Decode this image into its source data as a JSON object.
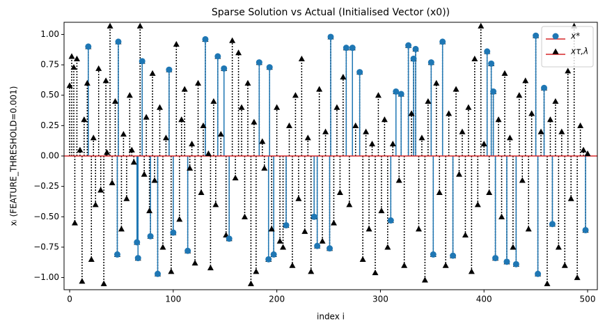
{
  "chart_data": {
    "type": "stem",
    "title": "Sparse Solution vs Actual (Initialised Vector (x0))",
    "x_label": "index i",
    "y_label": "xᵢ (FEATURE_THRESHOLD=0.001)",
    "xlim": [
      -5.4,
      509.4
    ],
    "ylim": [
      -1.1,
      1.1
    ],
    "xticks": [
      0,
      100,
      200,
      300,
      400,
      500
    ],
    "yticks": [
      {
        "value": -1,
        "label": "−1.00"
      },
      {
        "value": -0.75,
        "label": "−0.75"
      },
      {
        "value": -0.5,
        "label": "−0.50"
      },
      {
        "value": -0.25,
        "label": "−0.25"
      },
      {
        "value": 0,
        "label": "0.00"
      },
      {
        "value": 0.25,
        "label": "0.25"
      },
      {
        "value": 0.5,
        "label": "0.50"
      },
      {
        "value": 0.75,
        "label": "0.75"
      },
      {
        "value": 1,
        "label": "1.00"
      }
    ],
    "grid": false,
    "baseline_color": "#d62728",
    "legend": "upper right",
    "series": [
      {
        "name": "x*",
        "color": "#1f77b4",
        "marker": "circle",
        "stem_style": "solid",
        "x": [
          18,
          46,
          47,
          65,
          66,
          70,
          78,
          85,
          96,
          100,
          114,
          131,
          143,
          149,
          154,
          183,
          192,
          193,
          197,
          209,
          236,
          239,
          251,
          252,
          267,
          273,
          280,
          310,
          315,
          320,
          327,
          332,
          334,
          349,
          351,
          360,
          370,
          403,
          407,
          409,
          411,
          422,
          431,
          450,
          452,
          458,
          466,
          498
        ],
        "values": [
          0.9,
          -0.81,
          0.94,
          -0.71,
          -0.84,
          0.78,
          -0.66,
          -0.97,
          0.71,
          -0.63,
          -0.78,
          0.96,
          0.82,
          0.72,
          -0.68,
          0.77,
          -0.85,
          0.73,
          -0.81,
          -0.57,
          -0.5,
          -0.74,
          -0.76,
          0.98,
          0.89,
          0.89,
          0.69,
          -0.53,
          0.53,
          0.51,
          0.91,
          0.8,
          0.88,
          0.77,
          -0.81,
          0.94,
          -0.82,
          0.86,
          0.76,
          0.53,
          -0.84,
          -0.87,
          -0.89,
          0.99,
          -0.97,
          0.56,
          -0.56,
          -0.61
        ]
      },
      {
        "name": "xτ,λ",
        "color": "#000000",
        "marker": "triangle",
        "stem_style": "dotted",
        "x": [
          0,
          2,
          4,
          5,
          7,
          10,
          12,
          14,
          17,
          18,
          21,
          23,
          25,
          28,
          30,
          33,
          35,
          36,
          39,
          41,
          44,
          46,
          47,
          50,
          52,
          55,
          58,
          60,
          62,
          65,
          66,
          68,
          70,
          72,
          74,
          77,
          78,
          80,
          82,
          85,
          87,
          90,
          93,
          96,
          98,
          100,
          103,
          106,
          108,
          111,
          114,
          116,
          118,
          121,
          124,
          127,
          129,
          131,
          134,
          136,
          139,
          141,
          143,
          146,
          149,
          151,
          154,
          157,
          160,
          163,
          166,
          169,
          172,
          175,
          178,
          180,
          183,
          186,
          188,
          192,
          193,
          195,
          197,
          200,
          203,
          206,
          209,
          212,
          215,
          218,
          221,
          224,
          227,
          230,
          233,
          236,
          239,
          241,
          244,
          247,
          251,
          252,
          255,
          258,
          261,
          264,
          267,
          270,
          273,
          276,
          280,
          283,
          286,
          289,
          292,
          295,
          298,
          301,
          304,
          307,
          310,
          312,
          315,
          318,
          320,
          323,
          327,
          330,
          332,
          334,
          337,
          340,
          343,
          346,
          349,
          351,
          354,
          357,
          360,
          363,
          366,
          370,
          373,
          376,
          379,
          382,
          385,
          388,
          391,
          394,
          397,
          400,
          403,
          405,
          407,
          409,
          411,
          414,
          417,
          420,
          422,
          425,
          428,
          431,
          434,
          437,
          440,
          443,
          446,
          450,
          452,
          455,
          458,
          461,
          464,
          466,
          469,
          472,
          475,
          478,
          481,
          484,
          487,
          490,
          493,
          496,
          498,
          500
        ],
        "values": [
          0.58,
          0.82,
          0.73,
          -0.55,
          0.8,
          0.05,
          -1.03,
          0.3,
          0.6,
          0.9,
          -0.85,
          0.15,
          -0.4,
          0.72,
          -0.28,
          -1.05,
          0.62,
          0.03,
          1.07,
          -0.22,
          0.45,
          -0.81,
          0.94,
          -0.6,
          0.18,
          -0.35,
          0.5,
          0.05,
          -0.05,
          -0.71,
          -0.84,
          1.07,
          0.78,
          -0.15,
          0.32,
          -0.45,
          -0.66,
          0.68,
          -0.2,
          -0.97,
          0.4,
          -0.75,
          0.15,
          0.71,
          -0.95,
          -0.63,
          0.92,
          -0.52,
          0.3,
          0.55,
          -0.78,
          -0.1,
          0.1,
          -0.88,
          0.6,
          -0.3,
          0.25,
          0.96,
          0.02,
          -0.92,
          0.45,
          -0.4,
          0.82,
          0.18,
          0.72,
          -0.65,
          -0.68,
          0.95,
          -0.18,
          0.85,
          0.4,
          -0.5,
          0.6,
          -1.05,
          0.28,
          -0.95,
          0.77,
          0.12,
          -0.1,
          -0.85,
          0.73,
          -0.6,
          -0.81,
          0.4,
          -0.7,
          -0.75,
          -0.57,
          0.25,
          -0.9,
          0.5,
          -0.35,
          0.8,
          -0.62,
          0.15,
          -0.95,
          -0.5,
          -0.74,
          0.55,
          -0.7,
          0.2,
          -0.76,
          0.98,
          -0.55,
          0.4,
          -0.3,
          0.65,
          0.89,
          -0.4,
          0.89,
          0.25,
          0.69,
          -0.85,
          0.2,
          -0.6,
          0.1,
          -0.96,
          0.5,
          -0.45,
          0.3,
          -0.75,
          -0.53,
          0.1,
          0.53,
          -0.2,
          0.51,
          -0.9,
          0.91,
          0.35,
          0.8,
          0.88,
          -0.6,
          0.15,
          -1.02,
          0.45,
          0.77,
          -0.81,
          0.6,
          -0.3,
          0.94,
          -0.9,
          0.35,
          -0.82,
          0.55,
          -0.15,
          0.2,
          -0.65,
          0.4,
          -0.95,
          0.8,
          -0.4,
          1.07,
          0.1,
          0.86,
          -0.3,
          0.76,
          0.53,
          -0.84,
          0.3,
          -0.5,
          0.68,
          -0.87,
          0.15,
          -0.75,
          -0.89,
          0.5,
          -0.2,
          0.62,
          -0.6,
          0.35,
          0.99,
          -0.97,
          0.2,
          0.56,
          -1.05,
          0.3,
          -0.56,
          0.45,
          -0.75,
          0.2,
          -0.9,
          0.7,
          -0.35,
          1.07,
          -1.0,
          0.25,
          0.05,
          -0.61,
          0.02
        ]
      }
    ]
  }
}
